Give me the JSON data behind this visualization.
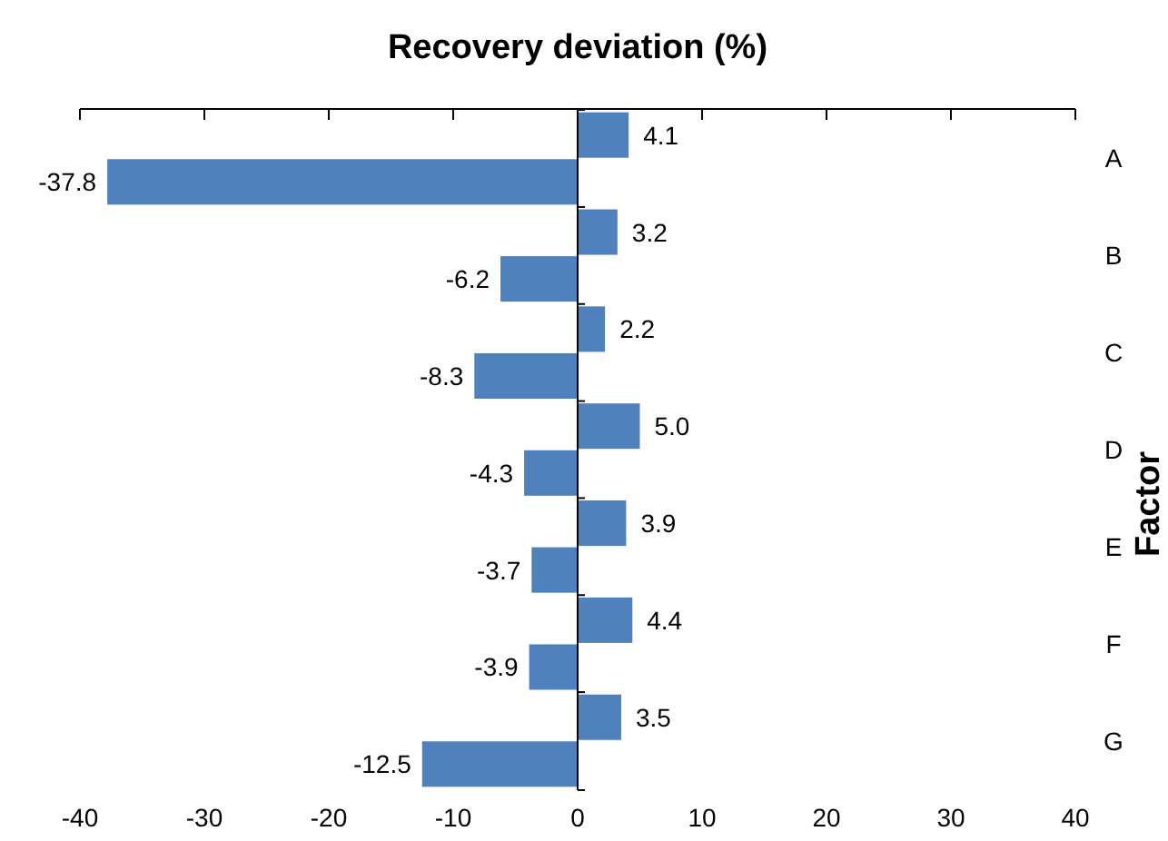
{
  "chart_data": {
    "type": "bar",
    "orientation": "horizontal",
    "xlabel": "Recovery deviation (%)",
    "ylabel": "Factor",
    "categories": [
      "A",
      "B",
      "C",
      "D",
      "E",
      "F",
      "G"
    ],
    "series": [
      {
        "color": "#4f81bd",
        "values": [
          4.1,
          3.2,
          2.2,
          5.0,
          3.9,
          4.4,
          3.5
        ],
        "value_labels": [
          "4.1",
          "3.2",
          "2.2",
          "5.0",
          "3.9",
          "4.4",
          "3.5"
        ]
      },
      {
        "color": "#4f81bd",
        "values": [
          -37.8,
          -6.2,
          -8.3,
          -4.3,
          -3.7,
          -3.9,
          -12.5
        ],
        "value_labels": [
          "-37.8",
          "-6.2",
          "-8.3",
          "-4.3",
          "-3.7",
          "-3.9",
          "-12.5"
        ]
      }
    ],
    "xlim": [
      -40,
      40
    ],
    "xticks": [
      -40,
      -30,
      -20,
      -10,
      0,
      10,
      20,
      30,
      40
    ]
  }
}
